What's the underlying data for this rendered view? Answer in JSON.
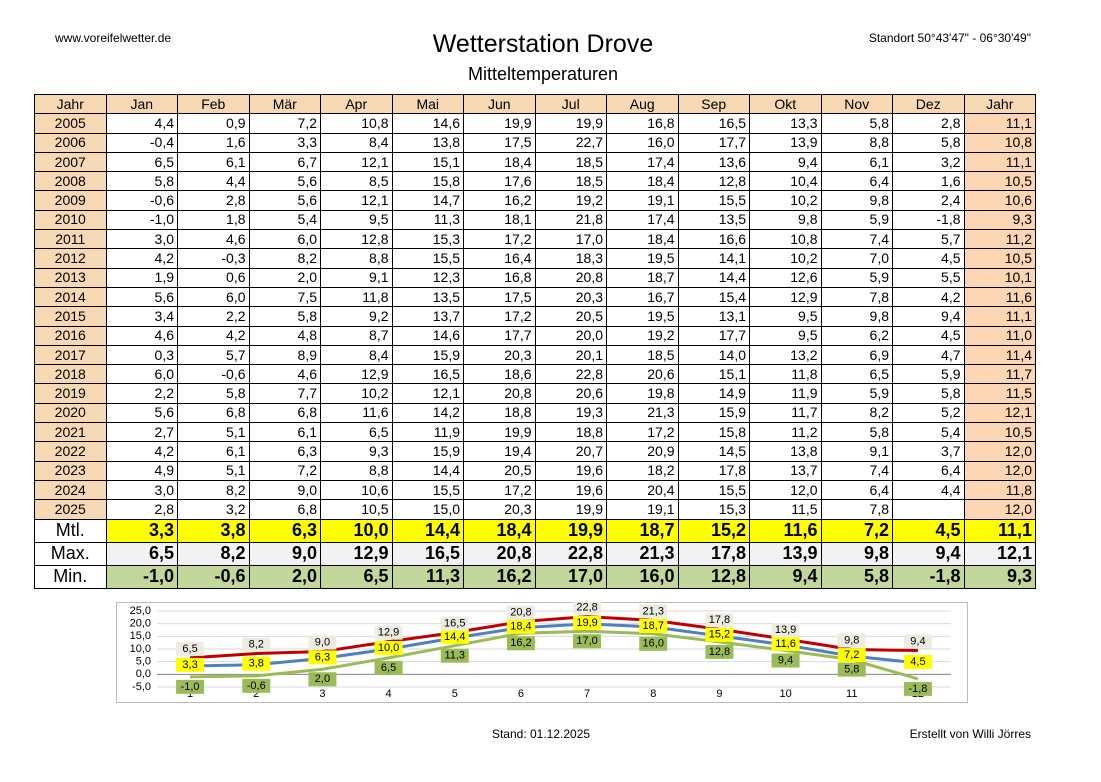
{
  "header": {
    "site": "www.voreifelwetter.de",
    "title": "Wetterstation Drove",
    "subtitle": "Mitteltemperaturen",
    "location": "Standort 50°43'47\" - 06°30'49\""
  },
  "table": {
    "header": [
      "Jahr",
      "Jan",
      "Feb",
      "Mär",
      "Apr",
      "Mai",
      "Jun",
      "Jul",
      "Aug",
      "Sep",
      "Okt",
      "Nov",
      "Dez",
      "Jahr"
    ],
    "rows": [
      [
        "2005",
        "4,4",
        "0,9",
        "7,2",
        "10,8",
        "14,6",
        "19,9",
        "19,9",
        "16,8",
        "16,5",
        "13,3",
        "5,8",
        "2,8",
        "11,1"
      ],
      [
        "2006",
        "-0,4",
        "1,6",
        "3,3",
        "8,4",
        "13,8",
        "17,5",
        "22,7",
        "16,0",
        "17,7",
        "13,9",
        "8,8",
        "5,8",
        "10,8"
      ],
      [
        "2007",
        "6,5",
        "6,1",
        "6,7",
        "12,1",
        "15,1",
        "18,4",
        "18,5",
        "17,4",
        "13,6",
        "9,4",
        "6,1",
        "3,2",
        "11,1"
      ],
      [
        "2008",
        "5,8",
        "4,4",
        "5,6",
        "8,5",
        "15,8",
        "17,6",
        "18,5",
        "18,4",
        "12,8",
        "10,4",
        "6,4",
        "1,6",
        "10,5"
      ],
      [
        "2009",
        "-0,6",
        "2,8",
        "5,6",
        "12,1",
        "14,7",
        "16,2",
        "19,2",
        "19,1",
        "15,5",
        "10,2",
        "9,8",
        "2,4",
        "10,6"
      ],
      [
        "2010",
        "-1,0",
        "1,8",
        "5,4",
        "9,5",
        "11,3",
        "18,1",
        "21,8",
        "17,4",
        "13,5",
        "9,8",
        "5,9",
        "-1,8",
        "9,3"
      ],
      [
        "2011",
        "3,0",
        "4,6",
        "6,0",
        "12,8",
        "15,3",
        "17,2",
        "17,0",
        "18,4",
        "16,6",
        "10,8",
        "7,4",
        "5,7",
        "11,2"
      ],
      [
        "2012",
        "4,2",
        "-0,3",
        "8,2",
        "8,8",
        "15,5",
        "16,4",
        "18,3",
        "19,5",
        "14,1",
        "10,2",
        "7,0",
        "4,5",
        "10,5"
      ],
      [
        "2013",
        "1,9",
        "0,6",
        "2,0",
        "9,1",
        "12,3",
        "16,8",
        "20,8",
        "18,7",
        "14,4",
        "12,6",
        "5,9",
        "5,5",
        "10,1"
      ],
      [
        "2014",
        "5,6",
        "6,0",
        "7,5",
        "11,8",
        "13,5",
        "17,5",
        "20,3",
        "16,7",
        "15,4",
        "12,9",
        "7,8",
        "4,2",
        "11,6"
      ],
      [
        "2015",
        "3,4",
        "2,2",
        "5,8",
        "9,2",
        "13,7",
        "17,2",
        "20,5",
        "19,5",
        "13,1",
        "9,5",
        "9,8",
        "9,4",
        "11,1"
      ],
      [
        "2016",
        "4,6",
        "4,2",
        "4,8",
        "8,7",
        "14,6",
        "17,7",
        "20,0",
        "19,2",
        "17,7",
        "9,5",
        "6,2",
        "4,5",
        "11,0"
      ],
      [
        "2017",
        "0,3",
        "5,7",
        "8,9",
        "8,4",
        "15,9",
        "20,3",
        "20,1",
        "18,5",
        "14,0",
        "13,2",
        "6,9",
        "4,7",
        "11,4"
      ],
      [
        "2018",
        "6,0",
        "-0,6",
        "4,6",
        "12,9",
        "16,5",
        "18,6",
        "22,8",
        "20,6",
        "15,1",
        "11,8",
        "6,5",
        "5,9",
        "11,7"
      ],
      [
        "2019",
        "2,2",
        "5,8",
        "7,7",
        "10,2",
        "12,1",
        "20,8",
        "20,6",
        "19,8",
        "14,9",
        "11,9",
        "5,9",
        "5,8",
        "11,5"
      ],
      [
        "2020",
        "5,6",
        "6,8",
        "6,8",
        "11,6",
        "14,2",
        "18,8",
        "19,3",
        "21,3",
        "15,9",
        "11,7",
        "8,2",
        "5,2",
        "12,1"
      ],
      [
        "2021",
        "2,7",
        "5,1",
        "6,1",
        "6,5",
        "11,9",
        "19,9",
        "18,8",
        "17,2",
        "15,8",
        "11,2",
        "5,8",
        "5,4",
        "10,5"
      ],
      [
        "2022",
        "4,2",
        "6,1",
        "6,3",
        "9,3",
        "15,9",
        "19,4",
        "20,7",
        "20,9",
        "14,5",
        "13,8",
        "9,1",
        "3,7",
        "12,0"
      ],
      [
        "2023",
        "4,9",
        "5,1",
        "7,2",
        "8,8",
        "14,4",
        "20,5",
        "19,6",
        "18,2",
        "17,8",
        "13,7",
        "7,4",
        "6,4",
        "12,0"
      ],
      [
        "2024",
        "3,0",
        "8,2",
        "9,0",
        "10,6",
        "15,5",
        "17,2",
        "19,6",
        "20,4",
        "15,5",
        "12,0",
        "6,4",
        "4,4",
        "11,8"
      ],
      [
        "2025",
        "2,8",
        "3,2",
        "6,8",
        "10,5",
        "15,0",
        "20,3",
        "19,9",
        "19,1",
        "15,3",
        "11,5",
        "7,8",
        null,
        "12,0"
      ]
    ],
    "summary": [
      [
        "Mtl.",
        "3,3",
        "3,8",
        "6,3",
        "10,0",
        "14,4",
        "18,4",
        "19,9",
        "18,7",
        "15,2",
        "11,6",
        "7,2",
        "4,5",
        "11,1"
      ],
      [
        "Max.",
        "6,5",
        "8,2",
        "9,0",
        "12,9",
        "16,5",
        "20,8",
        "22,8",
        "21,3",
        "17,8",
        "13,9",
        "9,8",
        "9,4",
        "12,1"
      ],
      [
        "Min.",
        "-1,0",
        "-0,6",
        "2,0",
        "6,5",
        "11,3",
        "16,2",
        "17,0",
        "16,0",
        "12,8",
        "9,4",
        "5,8",
        "-1,8",
        "9,3"
      ]
    ]
  },
  "chart_data": {
    "type": "line",
    "x": [
      1,
      2,
      3,
      4,
      5,
      6,
      7,
      8,
      9,
      10,
      11,
      12
    ],
    "xlim": [
      0.5,
      12.5
    ],
    "xticks": [
      1,
      2,
      3,
      4,
      5,
      6,
      7,
      8,
      9,
      10,
      11,
      12
    ],
    "ylim": [
      -5,
      25
    ],
    "yticks": [
      {
        "value": -5,
        "label": "-5,0"
      },
      {
        "value": 0,
        "label": "0,0"
      },
      {
        "value": 5,
        "label": "5,0"
      },
      {
        "value": 10,
        "label": "10,0"
      },
      {
        "value": 15,
        "label": "15,0"
      },
      {
        "value": 20,
        "label": "20,0"
      },
      {
        "value": 25,
        "label": "25,0"
      }
    ],
    "grid": true,
    "series": [
      {
        "color": "#4f81bd",
        "label_color": "#ffff00",
        "values": [
          3.3,
          3.8,
          6.3,
          10.0,
          14.4,
          18.4,
          19.9,
          18.7,
          15.2,
          11.6,
          7.2,
          4.5
        ],
        "value_labels": [
          "3,3",
          "3,8",
          "6,3",
          "10,0",
          "14,4",
          "18,4",
          "19,9",
          "18,7",
          "15,2",
          "11,6",
          "7,2",
          "4,5"
        ]
      },
      {
        "color": "#c00000",
        "label_color": "#eeece1",
        "values": [
          6.5,
          8.2,
          9.0,
          12.9,
          16.5,
          20.8,
          22.8,
          21.3,
          17.8,
          13.9,
          9.8,
          9.4
        ],
        "value_labels": [
          "6,5",
          "8,2",
          "9,0",
          "12,9",
          "16,5",
          "20,8",
          "22,8",
          "21,3",
          "17,8",
          "13,9",
          "9,8",
          "9,4"
        ]
      },
      {
        "color": "#9bbb59",
        "label_color": "#9bbb59",
        "values": [
          -1.0,
          -0.6,
          2.0,
          6.5,
          11.3,
          16.2,
          17.0,
          16.0,
          12.8,
          9.4,
          5.8,
          -1.8
        ],
        "value_labels": [
          "-1,0",
          "-0,6",
          "2,0",
          "6,5",
          "11,3",
          "16,2",
          "17,0",
          "16,0",
          "12,8",
          "9,4",
          "5,8",
          "-1,8"
        ]
      }
    ]
  },
  "footer": {
    "date": "Stand: 01.12.2025",
    "author": "Erstellt von Willi Jörres"
  }
}
